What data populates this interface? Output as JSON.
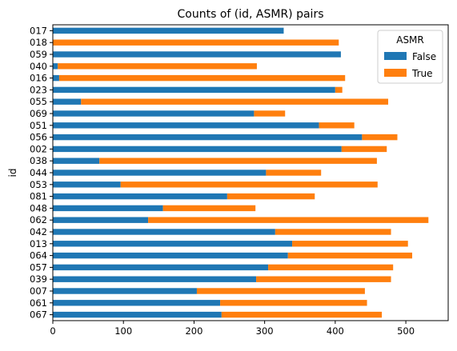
{
  "chart_data": {
    "type": "bar",
    "orientation": "horizontal",
    "stacked": true,
    "title": "Counts of (id, ASMR) pairs",
    "xlabel": "",
    "ylabel": "id",
    "xlim": [
      0,
      560
    ],
    "xticks": [
      0,
      100,
      200,
      300,
      400,
      500
    ],
    "grid": false,
    "legend": {
      "title": "ASMR",
      "placement": "top-right"
    },
    "categories": [
      "017",
      "018",
      "059",
      "040",
      "016",
      "023",
      "055",
      "069",
      "051",
      "056",
      "002",
      "038",
      "044",
      "053",
      "081",
      "048",
      "062",
      "042",
      "013",
      "064",
      "057",
      "039",
      "007",
      "061",
      "067"
    ],
    "series": [
      {
        "name": "False",
        "color": "#1f77b4",
        "values": [
          327,
          0,
          408,
          7,
          9,
          400,
          40,
          285,
          377,
          438,
          409,
          66,
          302,
          96,
          247,
          156,
          135,
          315,
          339,
          333,
          305,
          288,
          204,
          237,
          239
        ]
      },
      {
        "name": "True",
        "color": "#ff7f0e",
        "values": [
          0,
          405,
          0,
          282,
          405,
          10,
          435,
          44,
          50,
          50,
          64,
          393,
          78,
          364,
          124,
          131,
          397,
          164,
          164,
          176,
          177,
          191,
          238,
          208,
          227
        ]
      }
    ]
  }
}
